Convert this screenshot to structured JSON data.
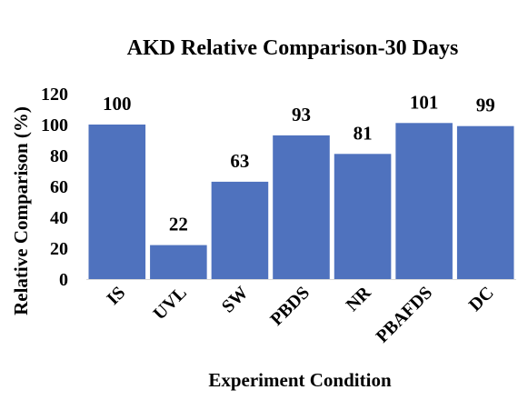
{
  "chart_data": {
    "type": "bar",
    "title": "AKD Relative Comparison-30 Days",
    "xlabel": "Experiment Condition",
    "ylabel": "Relative Comparison (%)",
    "categories": [
      "IS",
      "UVL",
      "SW",
      "PBDS",
      "NR",
      "PBAFDS",
      "DC"
    ],
    "values": [
      100,
      22,
      63,
      93,
      81,
      101,
      99
    ],
    "data_labels": [
      "100",
      "22",
      "63",
      "93",
      "81",
      "101",
      "99"
    ],
    "ylim": [
      0,
      120
    ],
    "yticks": [
      "0",
      "20",
      "40",
      "60",
      "80",
      "100",
      "120"
    ],
    "grid": false,
    "legend": "none",
    "bar_color": "#4F72BE"
  }
}
